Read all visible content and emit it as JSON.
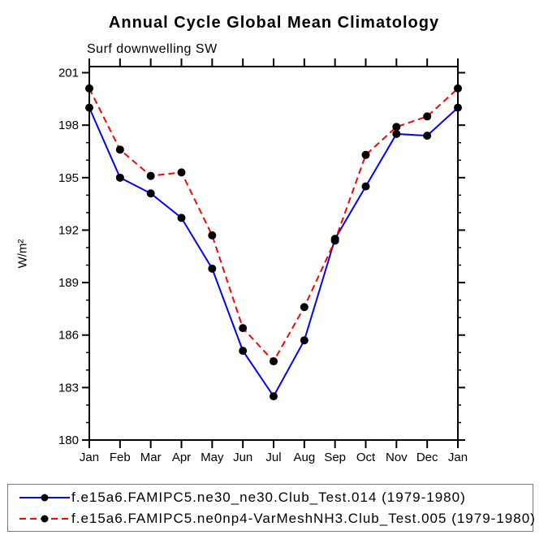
{
  "title": "Annual Cycle Global Mean Climatology",
  "subtitle": "Surf downwelling SW",
  "chart_data": {
    "type": "line",
    "title": "Annual Cycle Global Mean Climatology",
    "subtitle": "Surf downwelling SW",
    "ylabel": "W/m²",
    "xlabel": "",
    "categories": [
      "Jan",
      "Feb",
      "Mar",
      "Apr",
      "May",
      "Jun",
      "Jul",
      "Aug",
      "Sep",
      "Oct",
      "Nov",
      "Dec",
      "Jan"
    ],
    "series": [
      {
        "name": "f.e15a6.FAMIPC5.ne30_ne30.Club_Test.014 (1979-1980)",
        "color": "#0000ff",
        "line_style": "solid",
        "marker": "filled-circle",
        "marker_color": "#000000",
        "values": [
          199.0,
          195.0,
          194.1,
          192.7,
          189.8,
          185.1,
          182.5,
          185.7,
          191.5,
          194.5,
          197.5,
          197.4,
          199.0
        ]
      },
      {
        "name": "f.e15a6.FAMIPC5.ne0np4-VarMeshNH3.Club_Test.005 (1979-1980)",
        "color": "#ff0000",
        "line_style": "dashed",
        "marker": "filled-circle",
        "marker_color": "#000000",
        "values": [
          200.1,
          196.6,
          195.1,
          195.3,
          191.7,
          186.4,
          184.5,
          187.6,
          191.4,
          196.3,
          197.9,
          198.5,
          200.1
        ]
      }
    ],
    "ylim": [
      180,
      201.35
    ],
    "yticks": [
      180,
      183,
      186,
      189,
      192,
      195,
      198,
      201
    ],
    "y_minor_step": 1,
    "grid": false,
    "legend_position": "bottom",
    "axis_color": "#000000",
    "background_color": "#ffffff"
  }
}
